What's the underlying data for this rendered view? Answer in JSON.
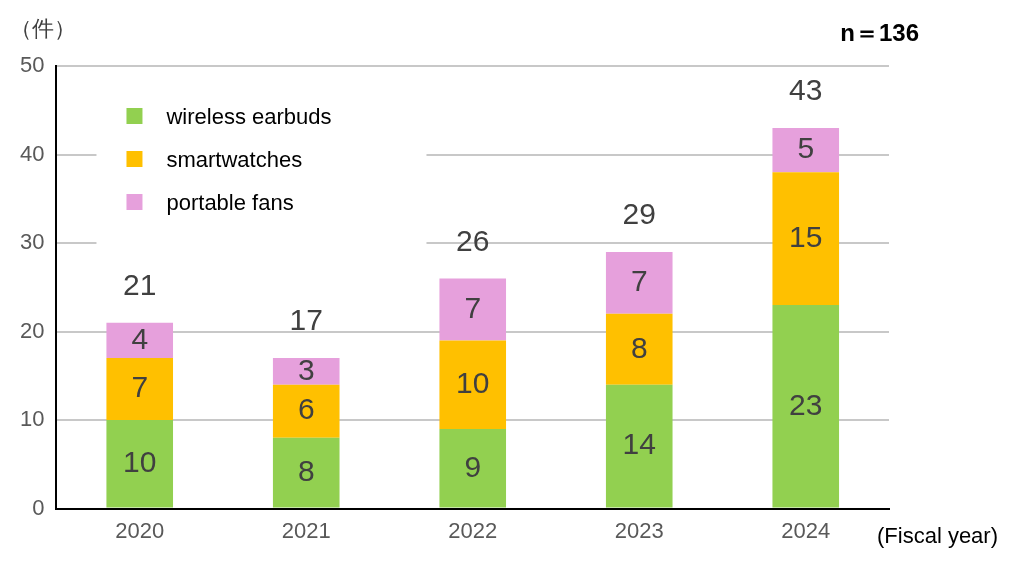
{
  "chart_data": {
    "type": "bar",
    "stacked": true,
    "ylabel": "（件）",
    "xlabel": "(Fiscal year)",
    "annotations": [
      "n＝136"
    ],
    "categories": [
      "2020",
      "2021",
      "2022",
      "2023",
      "2024"
    ],
    "series": [
      {
        "name": "wireless earbuds",
        "color": "#92d050",
        "values": [
          10,
          8,
          9,
          14,
          23
        ]
      },
      {
        "name": "smartwatches",
        "color": "#ffc000",
        "values": [
          7,
          6,
          10,
          8,
          15
        ]
      },
      {
        "name": "portable fans",
        "color": "#e6a0dc",
        "values": [
          4,
          3,
          7,
          7,
          5
        ]
      }
    ],
    "totals": [
      "21",
      "17",
      "26",
      "29",
      "43"
    ],
    "data_labels": true,
    "ylim": [
      0,
      50
    ],
    "yticks": [
      0,
      10,
      20,
      30,
      40,
      50
    ],
    "grid": "y",
    "legend": "top left"
  }
}
